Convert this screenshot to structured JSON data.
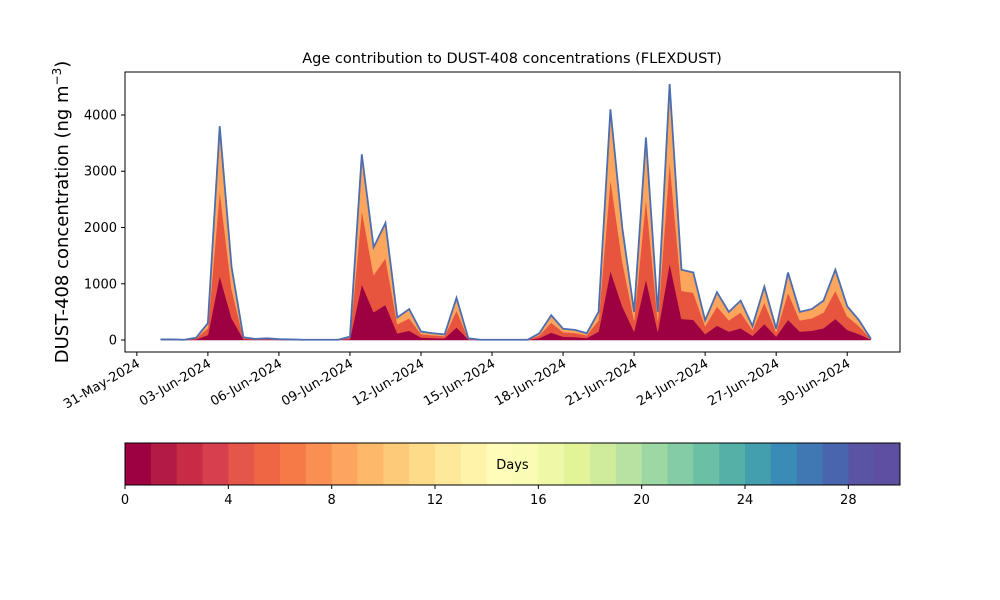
{
  "chart_data": {
    "type": "stacked_area",
    "title": "Age contribution to DUST-408 concentrations (FLEXDUST)",
    "ylabel": "DUST-408 concentration (ng m",
    "ylabel_sup": "−3",
    "ylabel_end": ")",
    "x": [
      "2024-06-01T00:00",
      "2024-06-01T12:00",
      "2024-06-02T00:00",
      "2024-06-02T12:00",
      "2024-06-03T00:00",
      "2024-06-03T12:00",
      "2024-06-04T00:00",
      "2024-06-04T12:00",
      "2024-06-05T00:00",
      "2024-06-05T12:00",
      "2024-06-06T00:00",
      "2024-06-06T12:00",
      "2024-06-07T00:00",
      "2024-06-07T12:00",
      "2024-06-08T00:00",
      "2024-06-08T12:00",
      "2024-06-09T00:00",
      "2024-06-09T12:00",
      "2024-06-10T00:00",
      "2024-06-10T12:00",
      "2024-06-11T00:00",
      "2024-06-11T12:00",
      "2024-06-12T00:00",
      "2024-06-12T12:00",
      "2024-06-13T00:00",
      "2024-06-13T12:00",
      "2024-06-14T00:00",
      "2024-06-14T12:00",
      "2024-06-15T00:00",
      "2024-06-15T12:00",
      "2024-06-16T00:00",
      "2024-06-16T12:00",
      "2024-06-17T00:00",
      "2024-06-17T12:00",
      "2024-06-18T00:00",
      "2024-06-18T12:00",
      "2024-06-19T00:00",
      "2024-06-19T12:00",
      "2024-06-20T00:00",
      "2024-06-20T12:00",
      "2024-06-21T00:00",
      "2024-06-21T12:00",
      "2024-06-22T00:00",
      "2024-06-22T12:00",
      "2024-06-23T00:00",
      "2024-06-23T12:00",
      "2024-06-24T00:00",
      "2024-06-24T12:00",
      "2024-06-25T00:00",
      "2024-06-25T12:00",
      "2024-06-26T00:00",
      "2024-06-26T12:00",
      "2024-06-27T00:00",
      "2024-06-27T12:00",
      "2024-06-28T00:00",
      "2024-06-28T12:00",
      "2024-06-29T00:00",
      "2024-06-29T12:00",
      "2024-06-30T00:00",
      "2024-06-30T12:00",
      "2024-07-01T00:00"
    ],
    "series": [
      {
        "color": "#9e0142",
        "values": [
          3,
          3,
          2,
          12,
          90,
          1140,
          390,
          15,
          6,
          9,
          5,
          3,
          2,
          2,
          2,
          2,
          18,
          990,
          495,
          624,
          120,
          165,
          45,
          36,
          30,
          225,
          9,
          2,
          2,
          2,
          2,
          2,
          36,
          132,
          60,
          54,
          36,
          150,
          1230,
          600,
          150,
          1080,
          150,
          1365,
          375,
          360,
          105,
          255,
          150,
          210,
          75,
          285,
          60,
          360,
          150,
          165,
          210,
          375,
          180,
          105,
          6
        ]
      },
      {
        "color": "#e8553f",
        "values": [
          4,
          4,
          2,
          16,
          120,
          1520,
          520,
          20,
          8,
          12,
          6,
          4,
          2,
          2,
          2,
          2,
          24,
          1320,
          660,
          832,
          160,
          220,
          60,
          48,
          40,
          300,
          12,
          2,
          2,
          2,
          2,
          2,
          48,
          176,
          80,
          72,
          48,
          200,
          1640,
          800,
          200,
          1440,
          200,
          1820,
          500,
          480,
          140,
          340,
          200,
          280,
          100,
          380,
          80,
          480,
          200,
          220,
          280,
          500,
          240,
          140,
          8
        ]
      },
      {
        "color": "#fca55d",
        "values": [
          3,
          3,
          1,
          12,
          90,
          1140,
          390,
          15,
          6,
          9,
          4,
          3,
          1,
          1,
          1,
          1,
          18,
          990,
          495,
          624,
          120,
          165,
          45,
          36,
          30,
          225,
          9,
          1,
          1,
          1,
          1,
          1,
          36,
          132,
          60,
          54,
          36,
          150,
          1230,
          600,
          150,
          1080,
          150,
          1365,
          375,
          360,
          105,
          255,
          150,
          210,
          75,
          285,
          60,
          360,
          150,
          165,
          210,
          375,
          180,
          105,
          6
        ]
      }
    ],
    "outline_color": "#4c6eb0",
    "xlim": [
      "2024-05-30T12:00",
      "2024-07-02T05:30"
    ],
    "xticks": [
      {
        "value": "2024-05-31T00:00",
        "label": "31-May-2024"
      },
      {
        "value": "2024-06-03T00:00",
        "label": "03-Jun-2024"
      },
      {
        "value": "2024-06-06T00:00",
        "label": "06-Jun-2024"
      },
      {
        "value": "2024-06-09T00:00",
        "label": "09-Jun-2024"
      },
      {
        "value": "2024-06-12T00:00",
        "label": "12-Jun-2024"
      },
      {
        "value": "2024-06-15T00:00",
        "label": "15-Jun-2024"
      },
      {
        "value": "2024-06-18T00:00",
        "label": "18-Jun-2024"
      },
      {
        "value": "2024-06-21T00:00",
        "label": "21-Jun-2024"
      },
      {
        "value": "2024-06-24T00:00",
        "label": "24-Jun-2024"
      },
      {
        "value": "2024-06-27T00:00",
        "label": "27-Jun-2024"
      },
      {
        "value": "2024-06-30T00:00",
        "label": "30-Jun-2024"
      }
    ],
    "ylim": [
      -213,
      4764
    ],
    "yticks": [
      0,
      1000,
      2000,
      3000,
      4000
    ],
    "colorbar": {
      "label": "Days",
      "lim": [
        0,
        30
      ],
      "ticks": [
        0,
        4,
        8,
        12,
        16,
        20,
        24,
        28
      ],
      "colors": [
        "#9e0142",
        "#b31a44",
        "#c72b46",
        "#d73f4e",
        "#e4554a",
        "#ef6645",
        "#f57a48",
        "#f98f53",
        "#fca55f",
        "#fdb869",
        "#fdca79",
        "#fedb89",
        "#fee89a",
        "#fff3aa",
        "#fffbb8",
        "#f9fcb4",
        "#eff8a6",
        "#e2f398",
        "#cfec9d",
        "#b7e2a1",
        "#9dd7a4",
        "#83cca5",
        "#6bbfa5",
        "#55b0a8",
        "#439eae",
        "#3b8bb7",
        "#3f78b3",
        "#4965ad",
        "#5a54a4",
        "#5e4fa2"
      ]
    }
  }
}
